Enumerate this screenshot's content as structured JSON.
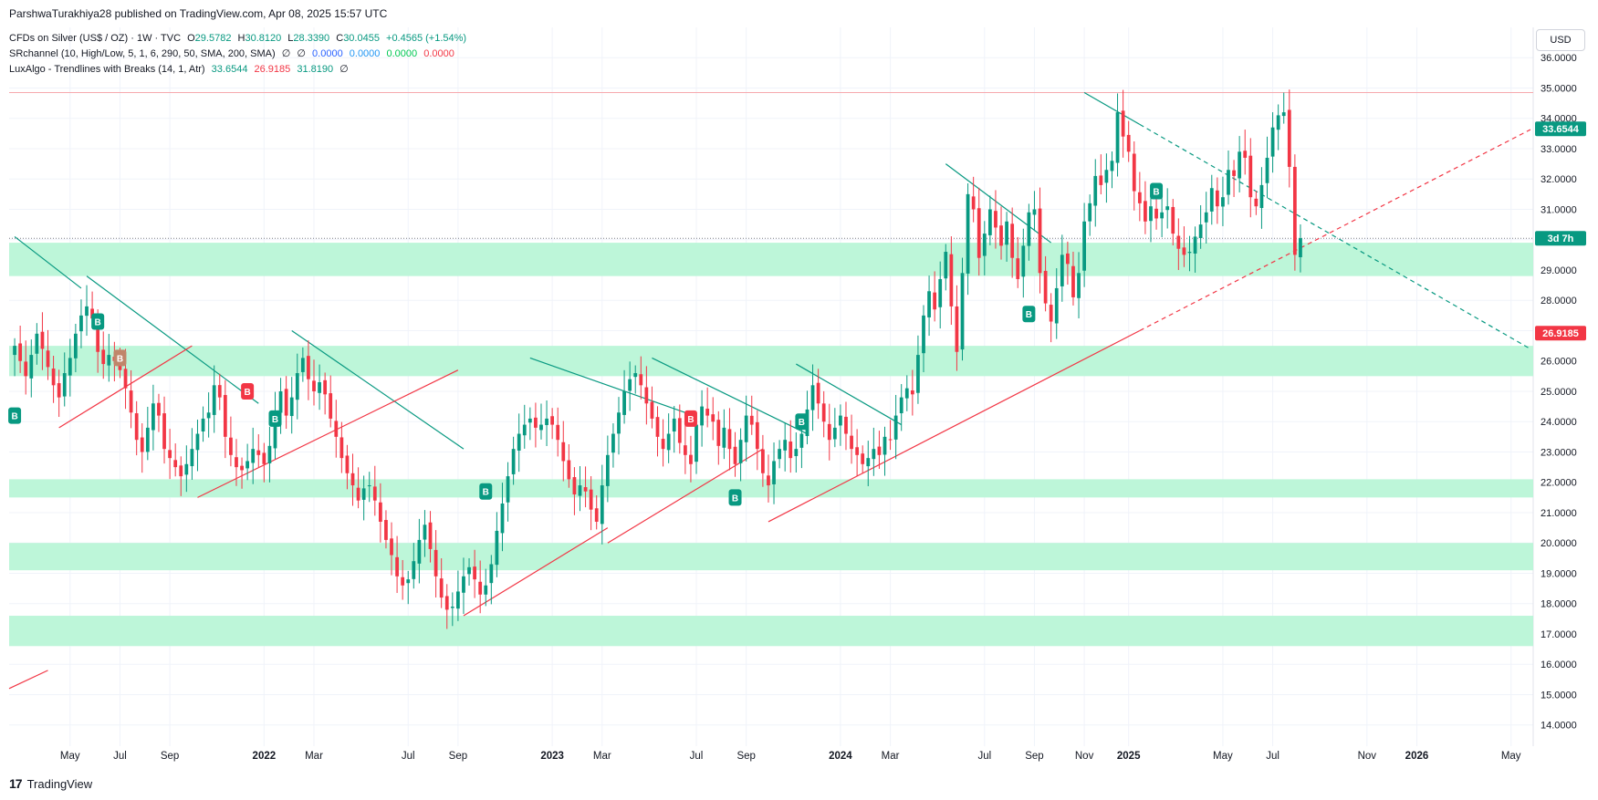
{
  "header": {
    "published": "ParshwaTurakhiya28 published on TradingView.com, Apr 08, 2025 15:57 UTC"
  },
  "legend": {
    "row1": {
      "title": "CFDs on Silver (US$ / OZ) · 1W · TVC",
      "o_label": "O",
      "o": "29.5782",
      "h_label": "H",
      "h": "30.8120",
      "l_label": "L",
      "l": "28.3390",
      "c_label": "C",
      "c": "30.0455",
      "chg": "+0.4565 (+1.54%)"
    },
    "row2": {
      "title": "SRchannel (10, High/Low, 5, 1, 6, 290, 50, SMA, 200, SMA)",
      "sym1": "∅",
      "sym2": "∅",
      "v1": "0.0000",
      "v2": "0.0000",
      "v3": "0.0000",
      "v4": "0.0000"
    },
    "row3": {
      "title": "LuxAlgo - Trendlines with Breaks (14, 1, Atr)",
      "v1": "33.6544",
      "v2": "26.9185",
      "v3": "31.8190",
      "sym": "∅"
    }
  },
  "currency_button": "USD",
  "price_labels": {
    "upper": "33.6544",
    "timer": "3d 7h",
    "lower": "26.9185"
  },
  "footer": {
    "logo_glyph": "17",
    "brand": "TradingView"
  },
  "colors": {
    "bull": "#089981",
    "bear": "#f23645",
    "zone": "#b9f6d7",
    "upper_line": "#089981",
    "lower_line": "#f23645",
    "timer_bg": "#089981",
    "upper_tag": "#089981",
    "lower_tag": "#f23645"
  },
  "chart_data": {
    "type": "candlestick",
    "title": "CFDs on Silver (US$ / OZ) · 1W · TVC",
    "y_ticks": [
      "14.0000",
      "15.0000",
      "16.0000",
      "17.0000",
      "18.0000",
      "19.0000",
      "20.0000",
      "21.0000",
      "22.0000",
      "23.0000",
      "24.0000",
      "25.0000",
      "26.0000",
      "27.0000",
      "28.0000",
      "29.0000",
      "30.0000",
      "31.0000",
      "32.0000",
      "33.0000",
      "34.0000",
      "35.0000",
      "36.0000"
    ],
    "ylim": [
      13.3,
      37.0
    ],
    "x_ticks": [
      {
        "label": "May",
        "week": 10
      },
      {
        "label": "Jul",
        "week": 19
      },
      {
        "label": "Sep",
        "week": 28
      },
      {
        "label": "2022",
        "week": 45
      },
      {
        "label": "Mar",
        "week": 54
      },
      {
        "label": "Jul",
        "week": 71
      },
      {
        "label": "Sep",
        "week": 80
      },
      {
        "label": "2023",
        "week": 97
      },
      {
        "label": "Mar",
        "week": 106
      },
      {
        "label": "Jul",
        "week": 123
      },
      {
        "label": "Sep",
        "week": 132
      },
      {
        "label": "2024",
        "week": 149
      },
      {
        "label": "Mar",
        "week": 158
      },
      {
        "label": "Jul",
        "week": 175
      },
      {
        "label": "Sep",
        "week": 184
      },
      {
        "label": "Nov",
        "week": 193
      },
      {
        "label": "2025",
        "week": 201
      },
      {
        "label": "May",
        "week": 218
      },
      {
        "label": "Jul",
        "week": 227
      },
      {
        "label": "Nov",
        "week": 244
      },
      {
        "label": "2026",
        "week": 253
      },
      {
        "label": "May",
        "week": 270
      }
    ],
    "x_range": [
      -1,
      274
    ],
    "sr_zones": [
      [
        28.8,
        29.9
      ],
      [
        25.5,
        26.5
      ],
      [
        21.5,
        22.1
      ],
      [
        19.1,
        20.0
      ],
      [
        16.6,
        17.6
      ]
    ],
    "resistance_level": 34.85,
    "current_price": 30.0455,
    "closes": [
      26.5,
      26.0,
      25.5,
      26.2,
      26.9,
      26.4,
      25.8,
      25.2,
      24.8,
      25.6,
      26.1,
      26.9,
      27.5,
      27.8,
      27.4,
      26.3,
      25.9,
      26.2,
      26.0,
      25.7,
      25.1,
      24.3,
      23.4,
      23.0,
      23.8,
      24.6,
      24.2,
      23.1,
      22.8,
      22.5,
      22.2,
      22.6,
      23.1,
      23.6,
      24.1,
      24.3,
      25.2,
      24.8,
      23.5,
      22.9,
      22.5,
      22.4,
      22.7,
      23.1,
      22.9,
      22.6,
      23.2,
      24.3,
      25.0,
      24.2,
      24.8,
      25.6,
      26.1,
      25.4,
      25.0,
      25.3,
      24.9,
      24.1,
      23.5,
      22.8,
      22.3,
      21.9,
      21.4,
      21.8,
      21.9,
      21.4,
      20.7,
      20.1,
      19.6,
      18.9,
      18.6,
      18.8,
      19.4,
      20.1,
      20.6,
      19.8,
      18.9,
      18.2,
      17.8,
      17.9,
      18.4,
      18.9,
      19.2,
      18.8,
      18.3,
      18.6,
      19.3,
      20.4,
      21.3,
      22.2,
      23.1,
      23.6,
      23.9,
      24.1,
      23.8,
      23.9,
      24.1,
      23.9,
      23.4,
      22.7,
      22.1,
      21.6,
      21.9,
      21.7,
      21.1,
      20.7,
      21.9,
      22.9,
      23.6,
      24.3,
      25.0,
      25.4,
      25.6,
      25.2,
      24.6,
      24.1,
      23.5,
      23.1,
      23.6,
      24.1,
      23.3,
      22.9,
      22.6,
      23.9,
      24.5,
      24.2,
      24.0,
      23.2,
      23.8,
      23.1,
      22.6,
      23.4,
      24.2,
      23.9,
      23.1,
      22.3,
      21.9,
      22.7,
      23.1,
      23.4,
      22.8,
      23.1,
      23.6,
      24.4,
      25.2,
      24.6,
      24.0,
      23.4,
      23.8,
      24.2,
      23.6,
      23.1,
      22.9,
      22.6,
      22.8,
      23.1,
      22.9,
      23.5,
      23.4,
      24.2,
      24.8,
      25.1,
      24.9,
      26.2,
      27.5,
      28.3,
      27.7,
      28.7,
      29.6,
      27.8,
      26.3,
      28.9,
      31.5,
      31.0,
      29.4,
      30.2,
      31.0,
      30.4,
      29.8,
      30.6,
      29.4,
      28.7,
      29.8,
      30.9,
      31.0,
      28.9,
      27.9,
      27.3,
      28.4,
      29.5,
      29.2,
      28.1,
      28.9,
      30.6,
      31.2,
      32.1,
      31.8,
      32.3,
      32.6,
      34.2,
      33.4,
      32.9,
      31.6,
      31.2,
      30.6,
      31.1,
      30.7,
      30.9,
      31.1,
      30.2,
      29.7,
      29.5,
      29.6,
      30.1,
      30.5,
      30.9,
      31.7,
      31.1,
      31.4,
      32.3,
      32.1,
      32.9,
      32.7,
      31.4,
      31.1,
      31.8,
      32.7,
      33.7,
      34.1,
      34.2,
      32.4,
      29.5,
      30.05
    ],
    "breaks": [
      {
        "week": 0,
        "price": 24.2,
        "type": "bull"
      },
      {
        "week": 15,
        "price": 27.3,
        "type": "bull"
      },
      {
        "week": 19,
        "price": 26.1,
        "type": "warn"
      },
      {
        "week": 42,
        "price": 25.0,
        "type": "bear"
      },
      {
        "week": 47,
        "price": 24.1,
        "type": "bull"
      },
      {
        "week": 85,
        "price": 21.7,
        "type": "bull"
      },
      {
        "week": 122,
        "price": 24.1,
        "type": "bear"
      },
      {
        "week": 130,
        "price": 21.5,
        "type": "bull"
      },
      {
        "week": 142,
        "price": 24.0,
        "type": "bull"
      },
      {
        "week": 183,
        "price": 27.55,
        "type": "bull"
      },
      {
        "week": 206,
        "price": 31.6,
        "type": "bull"
      }
    ],
    "break_glyph": "B",
    "down_trendlines": [
      {
        "x1": 0,
        "y1": 30.1,
        "x2": 12,
        "y2": 28.4,
        "ext": 0
      },
      {
        "x1": 13,
        "y1": 28.8,
        "x2": 44,
        "y2": 24.6,
        "ext": 0
      },
      {
        "x1": 50,
        "y1": 27.0,
        "x2": 81,
        "y2": 23.1,
        "ext": 0
      },
      {
        "x1": 93,
        "y1": 26.1,
        "x2": 121,
        "y2": 24.3,
        "ext": 0
      },
      {
        "x1": 115,
        "y1": 26.1,
        "x2": 143,
        "y2": 23.6,
        "ext": 0
      },
      {
        "x1": 141,
        "y1": 25.9,
        "x2": 160,
        "y2": 23.9,
        "ext": 0
      },
      {
        "x1": 168,
        "y1": 32.5,
        "x2": 187,
        "y2": 29.9,
        "ext": 0
      },
      {
        "x1": 193,
        "y1": 34.85,
        "x2": 203,
        "y2": 33.8,
        "ext": 1
      }
    ],
    "up_trendlines": [
      {
        "x1": -1,
        "y1": 15.2,
        "x2": 6,
        "y2": 15.8,
        "ext": 0
      },
      {
        "x1": 8,
        "y1": 23.8,
        "x2": 32,
        "y2": 26.5,
        "ext": 0
      },
      {
        "x1": 33,
        "y1": 21.5,
        "x2": 80,
        "y2": 25.7,
        "ext": 0
      },
      {
        "x1": 81,
        "y1": 17.6,
        "x2": 107,
        "y2": 20.5,
        "ext": 0
      },
      {
        "x1": 107,
        "y1": 20.0,
        "x2": 135,
        "y2": 23.1,
        "ext": 0
      },
      {
        "x1": 136,
        "y1": 20.7,
        "x2": 203,
        "y2": 27.0,
        "ext": 1
      }
    ]
  }
}
